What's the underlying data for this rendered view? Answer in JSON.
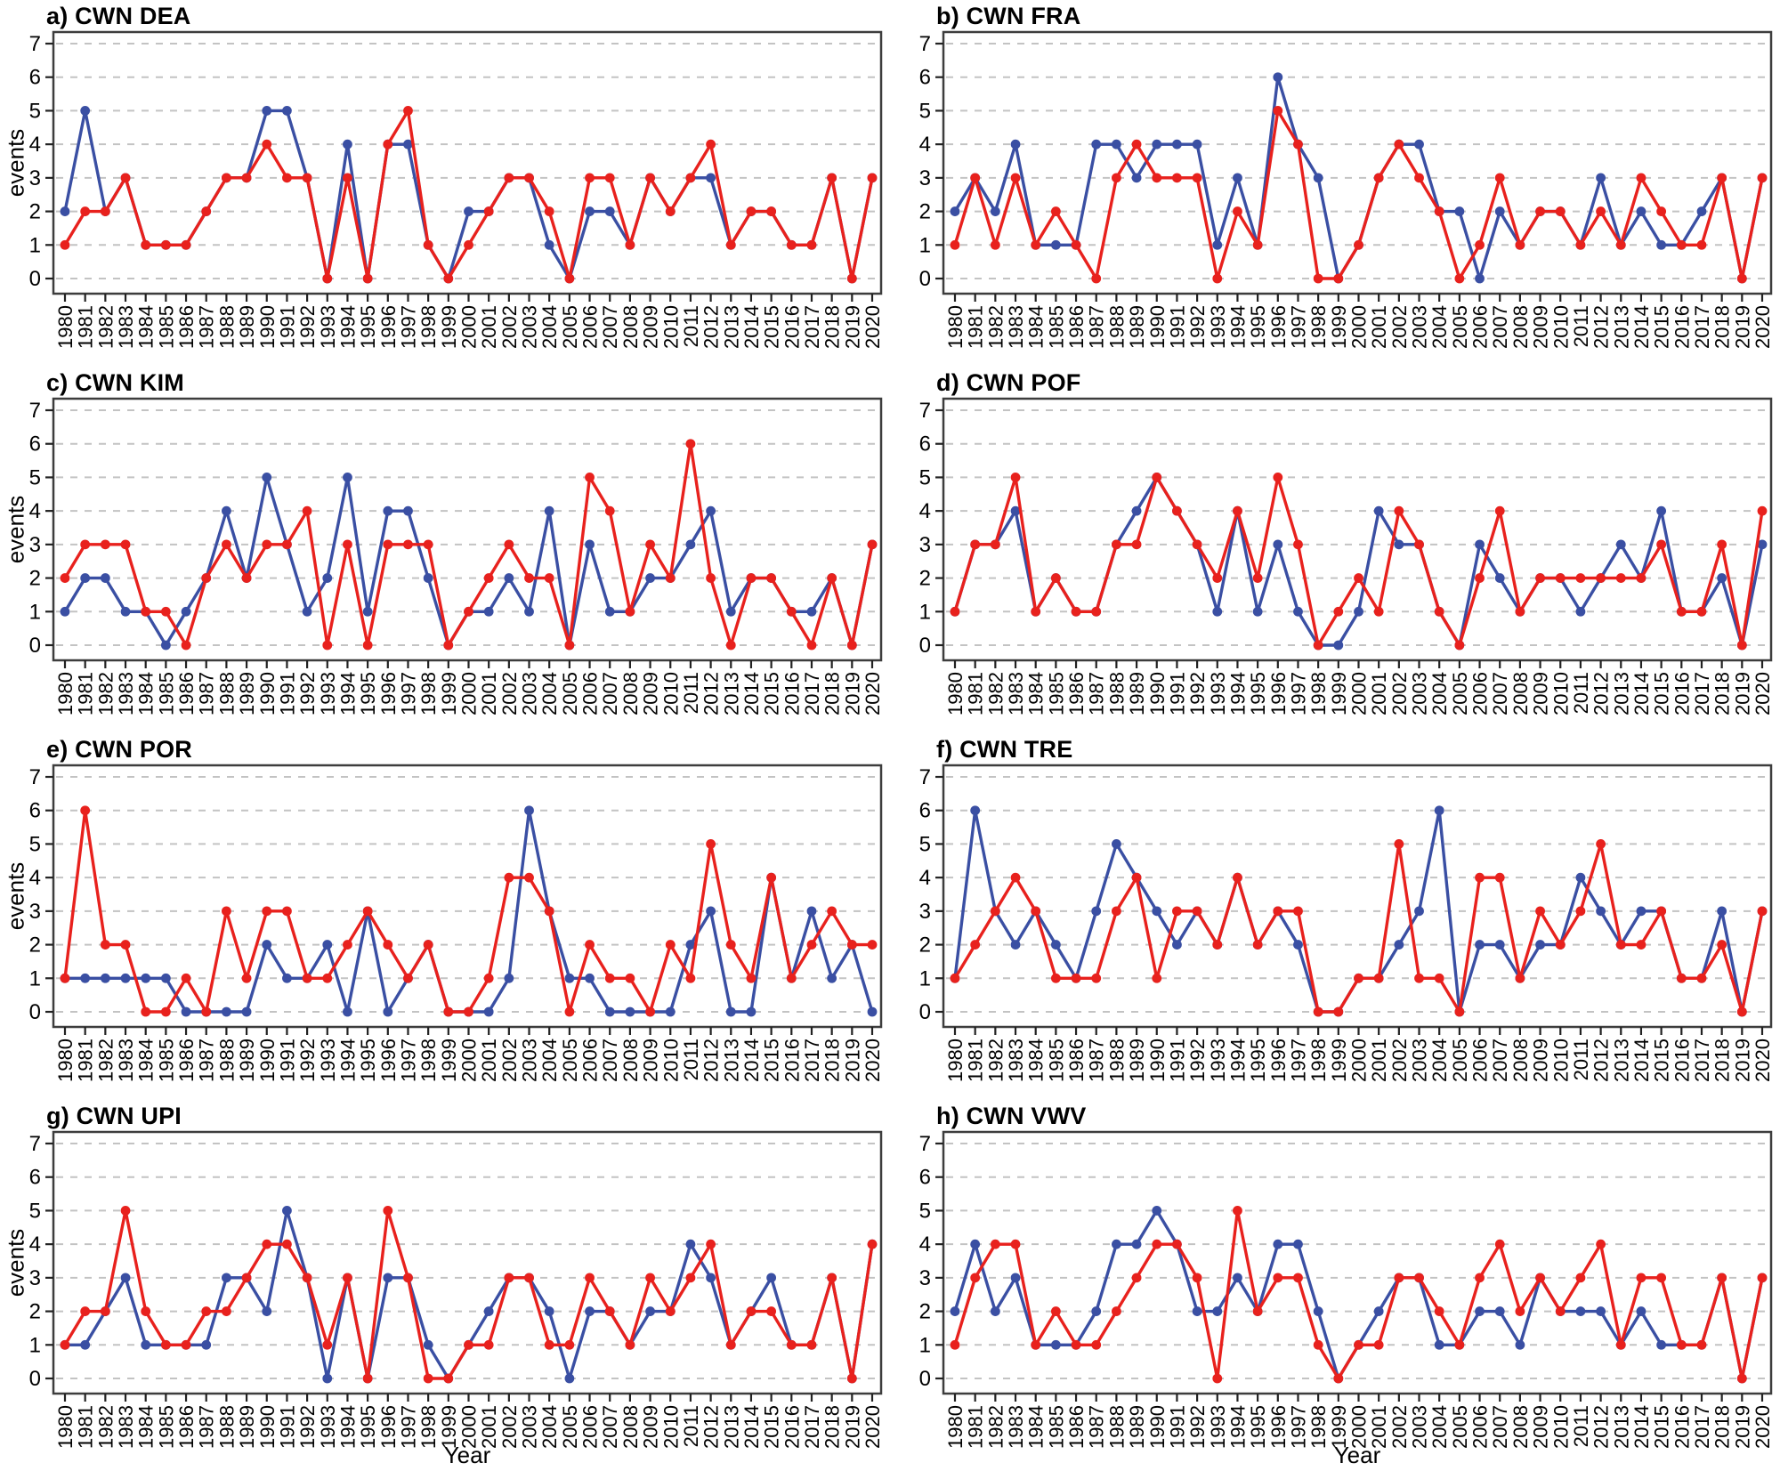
{
  "figure": {
    "ylabel": "events",
    "xlabel": "Year",
    "blue_color": "#3a4fa3",
    "red_color": "#e8211d",
    "grid_color": "#c3c3c3",
    "frame_color": "#3d3d3d"
  },
  "chart_data": [
    {
      "type": "line",
      "title": "a) CWN DEA",
      "xlabel": "Year",
      "ylabel": "events",
      "ylim": [
        0,
        7
      ],
      "grid": true,
      "legend_position": "none",
      "categories": [
        1980,
        1981,
        1982,
        1983,
        1984,
        1985,
        1986,
        1987,
        1988,
        1989,
        1990,
        1991,
        1992,
        1993,
        1994,
        1995,
        1996,
        1997,
        1998,
        1999,
        2000,
        2001,
        2002,
        2003,
        2004,
        2005,
        2006,
        2007,
        2008,
        2009,
        2010,
        2011,
        2012,
        2013,
        2014,
        2015,
        2016,
        2017,
        2018,
        2019,
        2020
      ],
      "series": [
        {
          "name": "blue",
          "color": "#3a4fa3",
          "values": [
            2,
            5,
            2,
            3,
            1,
            1,
            1,
            2,
            3,
            3,
            5,
            5,
            3,
            0,
            4,
            0,
            4,
            4,
            1,
            0,
            2,
            2,
            3,
            3,
            1,
            0,
            2,
            2,
            1,
            3,
            2,
            3,
            3,
            1,
            2,
            2,
            1,
            1,
            3,
            0,
            3
          ]
        },
        {
          "name": "red",
          "color": "#e8211d",
          "values": [
            1,
            2,
            2,
            3,
            1,
            1,
            1,
            2,
            3,
            3,
            4,
            3,
            3,
            0,
            3,
            0,
            4,
            5,
            1,
            0,
            1,
            2,
            3,
            3,
            2,
            0,
            3,
            3,
            1,
            3,
            2,
            3,
            4,
            1,
            2,
            2,
            1,
            1,
            3,
            0,
            3
          ]
        }
      ]
    },
    {
      "type": "line",
      "title": "b) CWN FRA",
      "xlabel": "Year",
      "ylabel": "events",
      "ylim": [
        0,
        7
      ],
      "grid": true,
      "legend_position": "none",
      "categories": [
        1980,
        1981,
        1982,
        1983,
        1984,
        1985,
        1986,
        1987,
        1988,
        1989,
        1990,
        1991,
        1992,
        1993,
        1994,
        1995,
        1996,
        1997,
        1998,
        1999,
        2000,
        2001,
        2002,
        2003,
        2004,
        2005,
        2006,
        2007,
        2008,
        2009,
        2010,
        2011,
        2012,
        2013,
        2014,
        2015,
        2016,
        2017,
        2018,
        2019,
        2020
      ],
      "series": [
        {
          "name": "blue",
          "color": "#3a4fa3",
          "values": [
            2,
            3,
            2,
            4,
            1,
            1,
            1,
            4,
            4,
            3,
            4,
            4,
            4,
            1,
            3,
            1,
            6,
            4,
            3,
            0,
            1,
            3,
            4,
            4,
            2,
            2,
            0,
            2,
            1,
            2,
            2,
            1,
            3,
            1,
            2,
            1,
            1,
            2,
            3,
            0,
            3
          ]
        },
        {
          "name": "red",
          "color": "#e8211d",
          "values": [
            1,
            3,
            1,
            3,
            1,
            2,
            1,
            0,
            3,
            4,
            3,
            3,
            3,
            0,
            2,
            1,
            5,
            4,
            0,
            0,
            1,
            3,
            4,
            3,
            2,
            0,
            1,
            3,
            1,
            2,
            2,
            1,
            2,
            1,
            3,
            2,
            1,
            1,
            3,
            0,
            3
          ]
        }
      ]
    },
    {
      "type": "line",
      "title": "c) CWN KIM",
      "xlabel": "Year",
      "ylabel": "events",
      "ylim": [
        0,
        7
      ],
      "grid": true,
      "legend_position": "none",
      "categories": [
        1980,
        1981,
        1982,
        1983,
        1984,
        1985,
        1986,
        1987,
        1988,
        1989,
        1990,
        1991,
        1992,
        1993,
        1994,
        1995,
        1996,
        1997,
        1998,
        1999,
        2000,
        2001,
        2002,
        2003,
        2004,
        2005,
        2006,
        2007,
        2008,
        2009,
        2010,
        2011,
        2012,
        2013,
        2014,
        2015,
        2016,
        2017,
        2018,
        2019,
        2020
      ],
      "series": [
        {
          "name": "blue",
          "color": "#3a4fa3",
          "values": [
            1,
            2,
            2,
            1,
            1,
            0,
            1,
            2,
            4,
            2,
            5,
            3,
            1,
            2,
            5,
            1,
            4,
            4,
            2,
            0,
            1,
            1,
            2,
            1,
            4,
            0,
            3,
            1,
            1,
            2,
            2,
            3,
            4,
            1,
            2,
            2,
            1,
            1,
            2,
            0,
            3
          ]
        },
        {
          "name": "red",
          "color": "#e8211d",
          "values": [
            2,
            3,
            3,
            3,
            1,
            1,
            0,
            2,
            3,
            2,
            3,
            3,
            4,
            0,
            3,
            0,
            3,
            3,
            3,
            0,
            1,
            2,
            3,
            2,
            2,
            0,
            5,
            4,
            1,
            3,
            2,
            6,
            2,
            0,
            2,
            2,
            1,
            0,
            2,
            0,
            3
          ]
        }
      ]
    },
    {
      "type": "line",
      "title": "d) CWN POF",
      "xlabel": "Year",
      "ylabel": "events",
      "ylim": [
        0,
        7
      ],
      "grid": true,
      "legend_position": "none",
      "categories": [
        1980,
        1981,
        1982,
        1983,
        1984,
        1985,
        1986,
        1987,
        1988,
        1989,
        1990,
        1991,
        1992,
        1993,
        1994,
        1995,
        1996,
        1997,
        1998,
        1999,
        2000,
        2001,
        2002,
        2003,
        2004,
        2005,
        2006,
        2007,
        2008,
        2009,
        2010,
        2011,
        2012,
        2013,
        2014,
        2015,
        2016,
        2017,
        2018,
        2019,
        2020
      ],
      "series": [
        {
          "name": "blue",
          "color": "#3a4fa3",
          "values": [
            1,
            3,
            3,
            4,
            1,
            2,
            1,
            1,
            3,
            4,
            5,
            4,
            3,
            1,
            4,
            1,
            3,
            1,
            0,
            0,
            1,
            4,
            3,
            3,
            1,
            0,
            3,
            2,
            1,
            2,
            2,
            1,
            2,
            3,
            2,
            4,
            1,
            1,
            2,
            0,
            3
          ]
        },
        {
          "name": "red",
          "color": "#e8211d",
          "values": [
            1,
            3,
            3,
            5,
            1,
            2,
            1,
            1,
            3,
            3,
            5,
            4,
            3,
            2,
            4,
            2,
            5,
            3,
            0,
            1,
            2,
            1,
            4,
            3,
            1,
            0,
            2,
            4,
            1,
            2,
            2,
            2,
            2,
            2,
            2,
            3,
            1,
            1,
            3,
            0,
            4
          ]
        }
      ]
    },
    {
      "type": "line",
      "title": "e) CWN POR",
      "xlabel": "Year",
      "ylabel": "events",
      "ylim": [
        0,
        7
      ],
      "grid": true,
      "legend_position": "none",
      "categories": [
        1980,
        1981,
        1982,
        1983,
        1984,
        1985,
        1986,
        1987,
        1988,
        1989,
        1990,
        1991,
        1992,
        1993,
        1994,
        1995,
        1996,
        1997,
        1998,
        1999,
        2000,
        2001,
        2002,
        2003,
        2004,
        2005,
        2006,
        2007,
        2008,
        2009,
        2010,
        2011,
        2012,
        2013,
        2014,
        2015,
        2016,
        2017,
        2018,
        2019,
        2020
      ],
      "series": [
        {
          "name": "blue",
          "color": "#3a4fa3",
          "values": [
            1,
            1,
            1,
            1,
            1,
            1,
            0,
            0,
            0,
            0,
            2,
            1,
            1,
            2,
            0,
            3,
            0,
            1,
            2,
            0,
            0,
            0,
            1,
            6,
            3,
            1,
            1,
            0,
            0,
            0,
            0,
            2,
            3,
            0,
            0,
            4,
            1,
            3,
            1,
            2,
            0
          ]
        },
        {
          "name": "red",
          "color": "#e8211d",
          "values": [
            1,
            6,
            2,
            2,
            0,
            0,
            1,
            0,
            3,
            1,
            3,
            3,
            1,
            1,
            2,
            3,
            2,
            1,
            2,
            0,
            0,
            1,
            4,
            4,
            3,
            0,
            2,
            1,
            1,
            0,
            2,
            1,
            5,
            2,
            1,
            4,
            1,
            2,
            3,
            2,
            2
          ]
        }
      ]
    },
    {
      "type": "line",
      "title": "f) CWN TRE",
      "xlabel": "Year",
      "ylabel": "events",
      "ylim": [
        0,
        7
      ],
      "grid": true,
      "legend_position": "none",
      "categories": [
        1980,
        1981,
        1982,
        1983,
        1984,
        1985,
        1986,
        1987,
        1988,
        1989,
        1990,
        1991,
        1992,
        1993,
        1994,
        1995,
        1996,
        1997,
        1998,
        1999,
        2000,
        2001,
        2002,
        2003,
        2004,
        2005,
        2006,
        2007,
        2008,
        2009,
        2010,
        2011,
        2012,
        2013,
        2014,
        2015,
        2016,
        2017,
        2018,
        2019,
        2020
      ],
      "series": [
        {
          "name": "blue",
          "color": "#3a4fa3",
          "values": [
            1,
            6,
            3,
            2,
            3,
            2,
            1,
            3,
            5,
            4,
            3,
            2,
            3,
            2,
            4,
            2,
            3,
            2,
            0,
            0,
            1,
            1,
            2,
            3,
            6,
            0,
            2,
            2,
            1,
            2,
            2,
            4,
            3,
            2,
            3,
            3,
            1,
            1,
            3,
            0,
            3
          ]
        },
        {
          "name": "red",
          "color": "#e8211d",
          "values": [
            1,
            2,
            3,
            4,
            3,
            1,
            1,
            1,
            3,
            4,
            1,
            3,
            3,
            2,
            4,
            2,
            3,
            3,
            0,
            0,
            1,
            1,
            5,
            1,
            1,
            0,
            4,
            4,
            1,
            3,
            2,
            3,
            5,
            2,
            2,
            3,
            1,
            1,
            2,
            0,
            3
          ]
        }
      ]
    },
    {
      "type": "line",
      "title": "g) CWN UPI",
      "xlabel": "Year",
      "ylabel": "events",
      "ylim": [
        0,
        7
      ],
      "grid": true,
      "legend_position": "none",
      "categories": [
        1980,
        1981,
        1982,
        1983,
        1984,
        1985,
        1986,
        1987,
        1988,
        1989,
        1990,
        1991,
        1992,
        1993,
        1994,
        1995,
        1996,
        1997,
        1998,
        1999,
        2000,
        2001,
        2002,
        2003,
        2004,
        2005,
        2006,
        2007,
        2008,
        2009,
        2010,
        2011,
        2012,
        2013,
        2014,
        2015,
        2016,
        2017,
        2018,
        2019,
        2020
      ],
      "series": [
        {
          "name": "blue",
          "color": "#3a4fa3",
          "values": [
            1,
            1,
            2,
            3,
            1,
            1,
            1,
            1,
            3,
            3,
            2,
            5,
            3,
            0,
            3,
            0,
            3,
            3,
            1,
            0,
            1,
            2,
            3,
            3,
            2,
            0,
            2,
            2,
            1,
            2,
            2,
            4,
            3,
            1,
            2,
            3,
            1,
            1,
            3,
            0,
            4
          ]
        },
        {
          "name": "red",
          "color": "#e8211d",
          "values": [
            1,
            2,
            2,
            5,
            2,
            1,
            1,
            2,
            2,
            3,
            4,
            4,
            3,
            1,
            3,
            0,
            5,
            3,
            0,
            0,
            1,
            1,
            3,
            3,
            1,
            1,
            3,
            2,
            1,
            3,
            2,
            3,
            4,
            1,
            2,
            2,
            1,
            1,
            3,
            0,
            4
          ]
        }
      ]
    },
    {
      "type": "line",
      "title": "h) CWN VWV",
      "xlabel": "Year",
      "ylabel": "events",
      "ylim": [
        0,
        7
      ],
      "grid": true,
      "legend_position": "none",
      "categories": [
        1980,
        1981,
        1982,
        1983,
        1984,
        1985,
        1986,
        1987,
        1988,
        1989,
        1990,
        1991,
        1992,
        1993,
        1994,
        1995,
        1996,
        1997,
        1998,
        1999,
        2000,
        2001,
        2002,
        2003,
        2004,
        2005,
        2006,
        2007,
        2008,
        2009,
        2010,
        2011,
        2012,
        2013,
        2014,
        2015,
        2016,
        2017,
        2018,
        2019,
        2020
      ],
      "series": [
        {
          "name": "blue",
          "color": "#3a4fa3",
          "values": [
            2,
            4,
            2,
            3,
            1,
            1,
            1,
            2,
            4,
            4,
            5,
            4,
            2,
            2,
            3,
            2,
            4,
            4,
            2,
            0,
            1,
            2,
            3,
            3,
            1,
            1,
            2,
            2,
            1,
            3,
            2,
            2,
            2,
            1,
            2,
            1,
            1,
            1,
            3,
            0,
            3
          ]
        },
        {
          "name": "red",
          "color": "#e8211d",
          "values": [
            1,
            3,
            4,
            4,
            1,
            2,
            1,
            1,
            2,
            3,
            4,
            4,
            3,
            0,
            5,
            2,
            3,
            3,
            1,
            0,
            1,
            1,
            3,
            3,
            2,
            1,
            3,
            4,
            2,
            3,
            2,
            3,
            4,
            1,
            3,
            3,
            1,
            1,
            3,
            0,
            3
          ]
        }
      ]
    }
  ]
}
